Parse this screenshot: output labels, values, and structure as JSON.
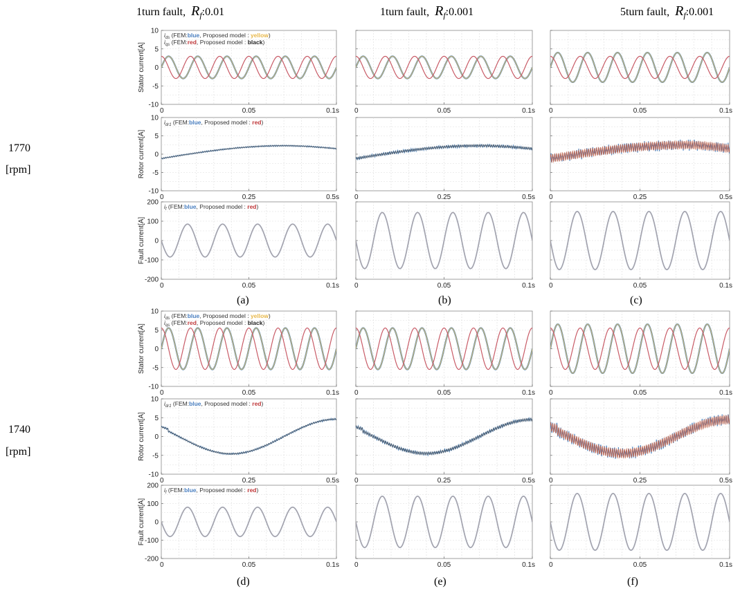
{
  "column_titles": [
    {
      "prefix": "1turn fault, ",
      "sym": "R",
      "sub": "f",
      "value": ":0.01"
    },
    {
      "prefix": "1turn fault, ",
      "sym": "R",
      "sub": "f",
      "value": ":0.001"
    },
    {
      "prefix": "5turn fault, ",
      "sym": "R",
      "sub": "f",
      "value": ":0.001"
    }
  ],
  "speed_groups": [
    {
      "value": "1770",
      "unit": "[rpm]"
    },
    {
      "value": "1740",
      "unit": "[rpm]"
    }
  ],
  "panel_labels": [
    "(a)",
    "(b)",
    "(c)",
    "(d)",
    "(e)",
    "(f)"
  ],
  "row_titles": {
    "stator": "Stator current[A]",
    "rotor": "Rotor current[A]",
    "fault": "Fault current[A]"
  },
  "legends": {
    "stator": [
      {
        "var": "i",
        "sub": "ds",
        "text_a": " (FEM:",
        "c1": "blue",
        "text_b": ", Proposed model : ",
        "c2": "yellow",
        "text_c": ")"
      },
      {
        "var": "i",
        "sub": "qs",
        "text_a": " (FEM:",
        "c1": "red",
        "text_b": ", Proposed model : ",
        "c2": "black",
        "text_c": ")"
      }
    ],
    "rotor": {
      "var": "i",
      "sub": "dr1",
      "text_a": " (FEM:",
      "c1": "blue",
      "text_b": ", Proposed model : ",
      "c2": "red",
      "text_c": ")"
    },
    "fault": {
      "var": "i",
      "sub": "f",
      "text_a": " (FEM:",
      "c1": "blue",
      "text_b": ", Proposed model : ",
      "c2": "red",
      "text_c": ")"
    }
  },
  "colors": {
    "fem_blue": "#2f6fa8",
    "legend_blue": "#4a7fc0",
    "legend_red": "#c0393b",
    "legend_yellow": "#e8b84a",
    "ids": "#c8b479",
    "iqs": "#c85a66",
    "fault": "#a9a0a3",
    "rotor": "#555f6a",
    "grid": "#dddddd"
  },
  "chart_data": [
    {
      "id": "a-stator",
      "type": "line",
      "row": "stator",
      "ylim": [
        -10,
        10
      ],
      "yticks": [
        "10",
        "5",
        "0",
        "-5",
        "-10"
      ],
      "xlim": [
        0,
        0.1
      ],
      "xticks": [
        "0",
        "0.05",
        "0.1s"
      ],
      "series": [
        {
          "amplitude": 3,
          "freq_hz": 60,
          "phase_deg": 0
        },
        {
          "amplitude": 3,
          "freq_hz": 60,
          "phase_deg": 90
        }
      ],
      "show_legend": true
    },
    {
      "id": "b-stator",
      "type": "line",
      "row": "stator",
      "ylim": [
        -10,
        10
      ],
      "xlim": [
        0,
        0.1
      ],
      "xticks": [
        "0",
        "0.05",
        "0.1s"
      ],
      "series": [
        {
          "amplitude": 3,
          "freq_hz": 60,
          "phase_deg": 0
        },
        {
          "amplitude": 3,
          "freq_hz": 60,
          "phase_deg": 90
        }
      ]
    },
    {
      "id": "c-stator",
      "type": "line",
      "row": "stator",
      "ylim": [
        -10,
        10
      ],
      "xlim": [
        0,
        0.1
      ],
      "xticks": [
        "0",
        "0.05",
        "0.1s"
      ],
      "series": [
        {
          "amplitude": 4,
          "freq_hz": 60,
          "phase_deg": 0
        },
        {
          "amplitude": 3,
          "freq_hz": 60,
          "phase_deg": 90
        }
      ]
    },
    {
      "id": "a-rotor",
      "type": "line",
      "row": "rotor",
      "ylim": [
        -10,
        10
      ],
      "yticks": [
        "10",
        "5",
        "0",
        "-5",
        "-10"
      ],
      "xlim": [
        0,
        0.5
      ],
      "xticks": [
        "0",
        "0.25",
        "0.5s"
      ],
      "trend": {
        "start": -1.2,
        "peak": 2.3,
        "peak_at": 0.35,
        "end": 1.5
      },
      "ripple": 0.15,
      "show_legend": true
    },
    {
      "id": "b-rotor",
      "type": "line",
      "row": "rotor",
      "ylim": [
        -10,
        10
      ],
      "xlim": [
        0,
        0.5
      ],
      "xticks": [
        "0",
        "0.25",
        "0.5s"
      ],
      "trend": {
        "start": -1.2,
        "peak": 2.3,
        "peak_at": 0.35,
        "end": 1.5
      },
      "ripple": 0.35
    },
    {
      "id": "c-rotor",
      "type": "line",
      "row": "rotor",
      "ylim": [
        -10,
        10
      ],
      "xlim": [
        0,
        0.5
      ],
      "xticks": [
        "0",
        "0.25",
        "0.5s"
      ],
      "trend": {
        "start": -1.2,
        "peak": 2.5,
        "peak_at": 0.38,
        "end": 1.5
      },
      "ripple": 1.2
    },
    {
      "id": "a-fault",
      "type": "line",
      "row": "fault",
      "ylim": [
        -200,
        200
      ],
      "yticks": [
        "200",
        "100",
        "0",
        "-100",
        "-200"
      ],
      "xlim": [
        0,
        0.1
      ],
      "xticks": [
        "0",
        "0.05",
        "0.1s"
      ],
      "series": [
        {
          "amplitude": 85,
          "freq_hz": 50,
          "phase_deg": 180
        }
      ],
      "show_legend": true
    },
    {
      "id": "b-fault",
      "type": "line",
      "row": "fault",
      "ylim": [
        -200,
        200
      ],
      "xlim": [
        0,
        0.1
      ],
      "xticks": [
        "0",
        "0.05",
        "0.1s"
      ],
      "series": [
        {
          "amplitude": 145,
          "freq_hz": 50,
          "phase_deg": 180
        }
      ]
    },
    {
      "id": "c-fault",
      "type": "line",
      "row": "fault",
      "ylim": [
        -200,
        200
      ],
      "xlim": [
        0,
        0.1
      ],
      "xticks": [
        "0",
        "0.05",
        "0.1s"
      ],
      "series": [
        {
          "amplitude": 150,
          "freq_hz": 50,
          "phase_deg": 180
        }
      ]
    },
    {
      "id": "d-stator",
      "type": "line",
      "row": "stator",
      "ylim": [
        -10,
        10
      ],
      "yticks": [
        "10",
        "5",
        "0",
        "-5",
        "-10"
      ],
      "xlim": [
        0,
        0.1
      ],
      "xticks": [
        "0",
        "0.05",
        "0.1s"
      ],
      "series": [
        {
          "amplitude": 5.5,
          "freq_hz": 60,
          "phase_deg": 0
        },
        {
          "amplitude": 5.5,
          "freq_hz": 60,
          "phase_deg": 90
        }
      ],
      "show_legend": true
    },
    {
      "id": "e-stator",
      "type": "line",
      "row": "stator",
      "ylim": [
        -10,
        10
      ],
      "xlim": [
        0,
        0.1
      ],
      "xticks": [
        "0",
        "0.05",
        "0.1s"
      ],
      "series": [
        {
          "amplitude": 5.5,
          "freq_hz": 60,
          "phase_deg": 0
        },
        {
          "amplitude": 5.5,
          "freq_hz": 60,
          "phase_deg": 90
        }
      ]
    },
    {
      "id": "f-stator",
      "type": "line",
      "row": "stator",
      "ylim": [
        -10,
        10
      ],
      "xlim": [
        0,
        0.1
      ],
      "xticks": [
        "0",
        "0.05",
        "0.1s"
      ],
      "series": [
        {
          "amplitude": 6.5,
          "freq_hz": 60,
          "phase_deg": 0
        },
        {
          "amplitude": 5.5,
          "freq_hz": 60,
          "phase_deg": 90
        }
      ]
    },
    {
      "id": "d-rotor",
      "type": "line",
      "row": "rotor",
      "ylim": [
        -10,
        10
      ],
      "yticks": [
        "10",
        "5",
        "0",
        "-5",
        "-10"
      ],
      "xlim": [
        0,
        0.5
      ],
      "xticks": [
        "0",
        "0.25",
        "0.5s"
      ],
      "wave": {
        "amplitude": 4.6,
        "period": 0.6,
        "trough_at": 0.2
      },
      "ripple": 0.2,
      "show_legend": true
    },
    {
      "id": "e-rotor",
      "type": "line",
      "row": "rotor",
      "ylim": [
        -10,
        10
      ],
      "xlim": [
        0,
        0.5
      ],
      "xticks": [
        "0",
        "0.25",
        "0.5s"
      ],
      "wave": {
        "amplitude": 4.5,
        "period": 0.6,
        "trough_at": 0.2
      },
      "ripple": 0.4
    },
    {
      "id": "f-rotor",
      "type": "line",
      "row": "rotor",
      "ylim": [
        -10,
        10
      ],
      "xlim": [
        0,
        0.5
      ],
      "xticks": [
        "0",
        "0.25",
        "0.5s"
      ],
      "wave": {
        "amplitude": 4.5,
        "period": 0.6,
        "trough_at": 0.2
      },
      "ripple": 1.3
    },
    {
      "id": "d-fault",
      "type": "line",
      "row": "fault",
      "ylim": [
        -200,
        200
      ],
      "yticks": [
        "200",
        "100",
        "0",
        "-100",
        "-200"
      ],
      "xlim": [
        0,
        0.1
      ],
      "xticks": [
        "0",
        "0.05",
        "0.1s"
      ],
      "series": [
        {
          "amplitude": 80,
          "freq_hz": 50,
          "phase_deg": 180
        }
      ],
      "show_legend": true
    },
    {
      "id": "e-fault",
      "type": "line",
      "row": "fault",
      "ylim": [
        -200,
        200
      ],
      "xlim": [
        0,
        0.1
      ],
      "xticks": [
        "0",
        "0.05",
        "0.1s"
      ],
      "series": [
        {
          "amplitude": 140,
          "freq_hz": 50,
          "phase_deg": 180
        }
      ]
    },
    {
      "id": "f-fault",
      "type": "line",
      "row": "fault",
      "ylim": [
        -200,
        200
      ],
      "xlim": [
        0,
        0.1
      ],
      "xticks": [
        "0",
        "0.05",
        "0.1s"
      ],
      "series": [
        {
          "amplitude": 155,
          "freq_hz": 50,
          "phase_deg": 180
        }
      ]
    }
  ]
}
